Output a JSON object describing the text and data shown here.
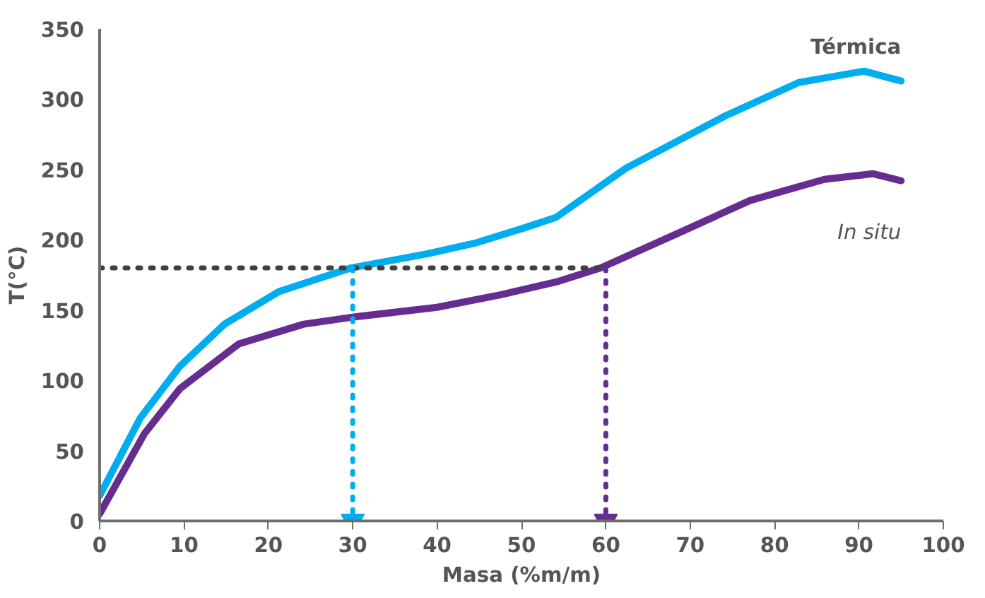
{
  "chart_data": {
    "type": "line",
    "xlabel": "Masa (%m/m)",
    "ylabel": "T(°C)",
    "xlim": [
      0,
      100
    ],
    "ylim": [
      0,
      350
    ],
    "xticks": [
      0,
      10,
      20,
      30,
      40,
      50,
      60,
      70,
      80,
      90,
      100
    ],
    "yticks": [
      0,
      50,
      100,
      150,
      200,
      250,
      300,
      350
    ],
    "grid": false,
    "line_style": "solid",
    "marker": "none",
    "series": [
      {
        "name": "Térmica",
        "color": "#00aeef",
        "x": [
          0,
          4.8,
          9.5,
          14.8,
          21.2,
          29.8,
          38.8,
          44.7,
          50.6,
          54.1,
          62.4,
          74.1,
          82.9,
          90.6,
          95
        ],
        "values": [
          18,
          73,
          110,
          140,
          163,
          180,
          190,
          198,
          209,
          216,
          251,
          288,
          312,
          320,
          313
        ]
      },
      {
        "name": "In situ",
        "color": "#662d91",
        "x": [
          0,
          5.3,
          9.5,
          16.5,
          24.2,
          30,
          40,
          47.6,
          54.1,
          59.4,
          68.3,
          77.1,
          85.9,
          91.7,
          95
        ],
        "values": [
          5,
          62,
          94,
          126,
          140,
          145,
          152,
          161,
          170,
          180,
          204,
          228,
          243,
          247,
          242
        ]
      },
      {
        "color": "#404040",
        "x": [
          0,
          60
        ],
        "values": [
          180,
          180
        ],
        "line_style": "dotted"
      },
      {
        "color": "#00aeef",
        "x": [
          30,
          30
        ],
        "values": [
          180,
          0
        ],
        "line_style": "dotted",
        "marker": "triangle"
      },
      {
        "color": "#662d91",
        "x": [
          60,
          60
        ],
        "values": [
          180,
          0
        ],
        "line_style": "dotted",
        "marker": "triangle"
      }
    ]
  }
}
